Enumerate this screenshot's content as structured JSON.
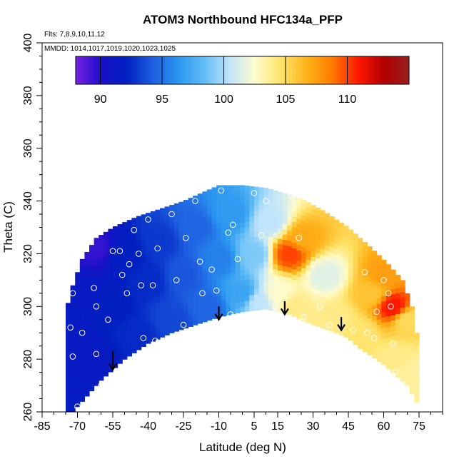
{
  "chart_data": {
    "type": "heatmap",
    "title": "ATOM3 Northbound HFC134a_PFP",
    "flights_note": "Flts: 7,8,9,10,11,12",
    "dates_note": "MMDD: 1014,1017,1019,1020,1023,1025",
    "xlabel": "Latitude (deg N)",
    "ylabel": "Theta (C)",
    "xlim": [
      -85,
      85
    ],
    "ylim": [
      260,
      400
    ],
    "x_ticks": [
      -85,
      -70,
      -55,
      -40,
      -25,
      -10,
      5,
      15,
      30,
      45,
      60,
      75
    ],
    "y_ticks": [
      260,
      280,
      300,
      320,
      340,
      360,
      380,
      400
    ],
    "colorbar": {
      "range": [
        88,
        115
      ],
      "ticks": [
        90,
        95,
        100,
        105,
        110
      ],
      "colors": [
        "#7a1fe0",
        "#1a10c8",
        "#0020c0",
        "#1e5ee0",
        "#2a96f0",
        "#60bdf5",
        "#bfe4fb",
        "#fffccd",
        "#ffe36a",
        "#ffb41a",
        "#ff7a00",
        "#ff1a00",
        "#b40000",
        "#962020"
      ]
    },
    "field_boundary": {
      "top": [
        [
          -75,
          298
        ],
        [
          -72,
          308
        ],
        [
          -68,
          318
        ],
        [
          -62,
          326
        ],
        [
          -55,
          330
        ],
        [
          -45,
          334
        ],
        [
          -35,
          337
        ],
        [
          -25,
          340
        ],
        [
          -15,
          344
        ],
        [
          -10,
          346
        ],
        [
          0,
          346
        ],
        [
          10,
          345
        ],
        [
          18,
          343
        ],
        [
          25,
          341
        ],
        [
          35,
          336
        ],
        [
          45,
          330
        ],
        [
          55,
          322
        ],
        [
          62,
          316
        ],
        [
          68,
          310
        ],
        [
          72,
          300
        ],
        [
          75,
          285
        ]
      ],
      "bottom": [
        [
          75,
          262
        ],
        [
          70,
          270
        ],
        [
          60,
          278
        ],
        [
          50,
          284
        ],
        [
          45,
          288
        ],
        [
          40,
          290
        ],
        [
          30,
          293
        ],
        [
          20,
          297
        ],
        [
          10,
          299
        ],
        [
          0,
          298
        ],
        [
          -10,
          296
        ],
        [
          -20,
          293
        ],
        [
          -30,
          290
        ],
        [
          -40,
          286
        ],
        [
          -50,
          280
        ],
        [
          -60,
          272
        ],
        [
          -68,
          264
        ],
        [
          -72,
          260
        ],
        [
          -75,
          260
        ]
      ]
    },
    "field_anchors": [
      {
        "lat": -74,
        "theta": 290,
        "value": 91.5
      },
      {
        "lat": -65,
        "theta": 280,
        "value": 91.5
      },
      {
        "lat": -65,
        "theta": 305,
        "value": 91.5
      },
      {
        "lat": -62,
        "theta": 322,
        "value": 89.5
      },
      {
        "lat": -55,
        "theta": 300,
        "value": 92
      },
      {
        "lat": -50,
        "theta": 320,
        "value": 92
      },
      {
        "lat": -45,
        "theta": 290,
        "value": 92.5
      },
      {
        "lat": -40,
        "theta": 310,
        "value": 92.5
      },
      {
        "lat": -35,
        "theta": 325,
        "value": 93
      },
      {
        "lat": -30,
        "theta": 295,
        "value": 93.5
      },
      {
        "lat": -25,
        "theta": 312,
        "value": 94
      },
      {
        "lat": -20,
        "theta": 330,
        "value": 94.5
      },
      {
        "lat": -15,
        "theta": 300,
        "value": 94.5
      },
      {
        "lat": -10,
        "theta": 318,
        "value": 95.5
      },
      {
        "lat": -5,
        "theta": 335,
        "value": 96.5
      },
      {
        "lat": 0,
        "theta": 305,
        "value": 97
      },
      {
        "lat": 5,
        "theta": 320,
        "value": 99
      },
      {
        "lat": 7,
        "theta": 302,
        "value": 100.5
      },
      {
        "lat": 12,
        "theta": 332,
        "value": 100.5
      },
      {
        "lat": 15,
        "theta": 305,
        "value": 102.5
      },
      {
        "lat": 20,
        "theta": 320,
        "value": 110
      },
      {
        "lat": 25,
        "theta": 326,
        "value": 107
      },
      {
        "lat": 22,
        "theta": 300,
        "value": 104
      },
      {
        "lat": 35,
        "theta": 312,
        "value": 101.5
      },
      {
        "lat": 40,
        "theta": 295,
        "value": 104
      },
      {
        "lat": 50,
        "theta": 290,
        "value": 104.5
      },
      {
        "lat": 55,
        "theta": 305,
        "value": 106
      },
      {
        "lat": 60,
        "theta": 312,
        "value": 107.5
      },
      {
        "lat": 64,
        "theta": 300,
        "value": 111
      },
      {
        "lat": 65,
        "theta": 280,
        "value": 104
      },
      {
        "lat": 72,
        "theta": 275,
        "value": 103.5
      },
      {
        "lat": 70,
        "theta": 295,
        "value": 105
      }
    ],
    "sample_points": [
      [
        -72,
        305
      ],
      [
        -73,
        292
      ],
      [
        -72,
        281
      ],
      [
        -70,
        262
      ],
      [
        -68,
        290
      ],
      [
        -63,
        307
      ],
      [
        -62,
        300
      ],
      [
        -62,
        282
      ],
      [
        -60,
        270
      ],
      [
        -57,
        295
      ],
      [
        -55,
        321
      ],
      [
        -52,
        321
      ],
      [
        -51,
        312
      ],
      [
        -49,
        305
      ],
      [
        -48,
        316
      ],
      [
        -46,
        329
      ],
      [
        -44,
        320
      ],
      [
        -43,
        308
      ],
      [
        -42,
        288
      ],
      [
        -40,
        333
      ],
      [
        -38,
        308
      ],
      [
        -37,
        287
      ],
      [
        -36,
        322
      ],
      [
        -30,
        335
      ],
      [
        -28,
        310
      ],
      [
        -25,
        293
      ],
      [
        -24,
        326
      ],
      [
        -20,
        340
      ],
      [
        -18,
        317
      ],
      [
        -17,
        305
      ],
      [
        -13,
        314
      ],
      [
        -11,
        306
      ],
      [
        -9,
        344
      ],
      [
        -6,
        328
      ],
      [
        -5,
        297
      ],
      [
        -4,
        331
      ],
      [
        -2,
        318
      ],
      [
        5,
        343
      ],
      [
        8,
        327
      ],
      [
        10,
        340
      ],
      [
        14,
        300
      ],
      [
        17,
        298
      ],
      [
        21,
        342
      ],
      [
        24,
        326
      ],
      [
        26,
        296
      ],
      [
        30,
        316
      ],
      [
        33,
        300
      ],
      [
        37,
        293
      ],
      [
        42,
        292
      ],
      [
        47,
        291
      ],
      [
        52,
        313
      ],
      [
        53,
        290
      ],
      [
        56,
        288
      ],
      [
        57,
        298
      ],
      [
        60,
        310
      ],
      [
        62,
        305
      ],
      [
        63,
        300
      ],
      [
        64,
        286
      ],
      [
        65,
        275
      ]
    ],
    "arrows": [
      {
        "lat": -55,
        "theta_top": 283,
        "theta_bottom": 276
      },
      {
        "lat": -10,
        "theta_top": 300,
        "theta_bottom": 295
      },
      {
        "lat": 18,
        "theta_top": 302,
        "theta_bottom": 297
      },
      {
        "lat": 42,
        "theta_top": 296,
        "theta_bottom": 291
      }
    ]
  }
}
